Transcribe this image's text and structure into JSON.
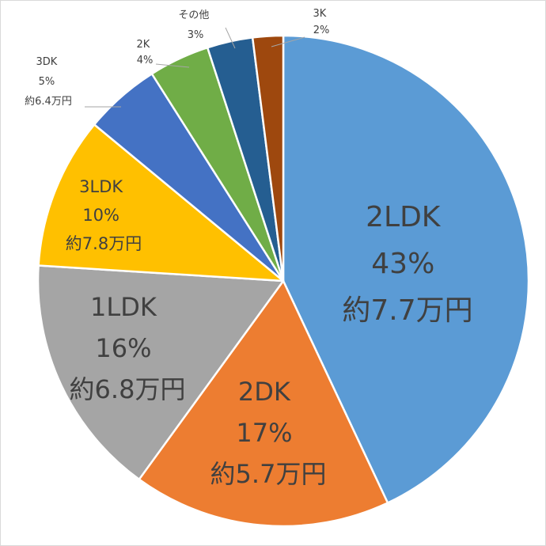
{
  "chart_data": {
    "type": "pie",
    "start": "top",
    "direction": "clockwise",
    "slices": [
      {
        "label": "2LDK",
        "percent_text": "43%",
        "rent_text": "約7.7万円",
        "value": 43,
        "color": "#5b9bd5"
      },
      {
        "label": "2DK",
        "percent_text": "17%",
        "rent_text": "約5.7万円",
        "value": 17,
        "color": "#ed7d31"
      },
      {
        "label": "1LDK",
        "percent_text": "16%",
        "rent_text": "約6.8万円",
        "value": 16,
        "color": "#a5a5a5"
      },
      {
        "label": "3LDK",
        "percent_text": "10%",
        "rent_text": "約7.8万円",
        "value": 10,
        "color": "#ffc000"
      },
      {
        "label": "3DK",
        "percent_text": "5%",
        "rent_text": "約6.4万円",
        "value": 5,
        "color": "#4472c4"
      },
      {
        "label": "2K",
        "percent_text": "4%",
        "rent_text": "",
        "value": 4,
        "color": "#70ad47"
      },
      {
        "label": "その他",
        "percent_text": "3%",
        "rent_text": "",
        "value": 3,
        "color": "#255e91"
      },
      {
        "label": "3K",
        "percent_text": "2%",
        "rent_text": "",
        "value": 2,
        "color": "#9e480e"
      }
    ]
  }
}
